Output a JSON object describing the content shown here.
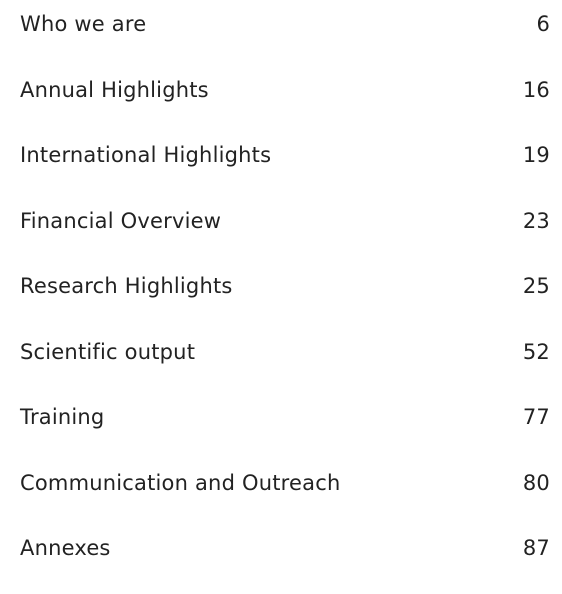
{
  "toc": {
    "entries": [
      {
        "title": "Who we are",
        "page": 6
      },
      {
        "title": "Annual Highlights",
        "page": 16
      },
      {
        "title": "International Highlights",
        "page": 19
      },
      {
        "title": "Financial Overview",
        "page": 23
      },
      {
        "title": "Research Highlights",
        "page": 25
      },
      {
        "title": "Scientific output",
        "page": 52
      },
      {
        "title": "Training",
        "page": 77
      },
      {
        "title": "Communication and Outreach",
        "page": 80
      },
      {
        "title": "Annexes",
        "page": 87
      }
    ]
  }
}
